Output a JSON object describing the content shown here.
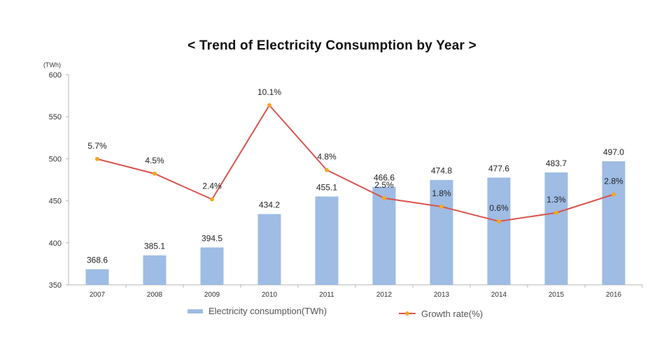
{
  "chart_data": {
    "type": "bar",
    "title": "< Trend of Electricity Consumption by Year >",
    "y_unit": "(TWh)",
    "ylim": [
      350,
      600
    ],
    "yticks": [
      350,
      400,
      450,
      500,
      550,
      600
    ],
    "grid": false,
    "legend": "bottom",
    "categories": [
      "2007",
      "2008",
      "2009",
      "2010",
      "2011",
      "2012",
      "2013",
      "2014",
      "2015",
      "2016"
    ],
    "series": [
      {
        "name": "Electricity consumption(TWh)",
        "type": "bar",
        "color": "#9ebce4",
        "values": [
          368.6,
          385.1,
          394.5,
          434.2,
          455.1,
          466.6,
          474.8,
          477.6,
          483.7,
          497.0
        ],
        "labels": [
          "368.6",
          "385.1",
          "394.5",
          "434.2",
          "455.1",
          "466.6",
          "474.8",
          "477.6",
          "483.7",
          "497.0"
        ]
      },
      {
        "name": "Growth rate(%)",
        "type": "line",
        "color": "#d9534f",
        "marker_color": "#f5a623",
        "values": [
          5.7,
          4.5,
          2.4,
          10.1,
          4.8,
          2.5,
          1.8,
          0.6,
          1.3,
          2.8
        ],
        "labels": [
          "5.7%",
          "4.5%",
          "2.4%",
          "10.1%",
          "4.8%",
          "2.5%",
          "1.8%",
          "0.6%",
          "1.3%",
          "2.8%"
        ]
      }
    ]
  }
}
